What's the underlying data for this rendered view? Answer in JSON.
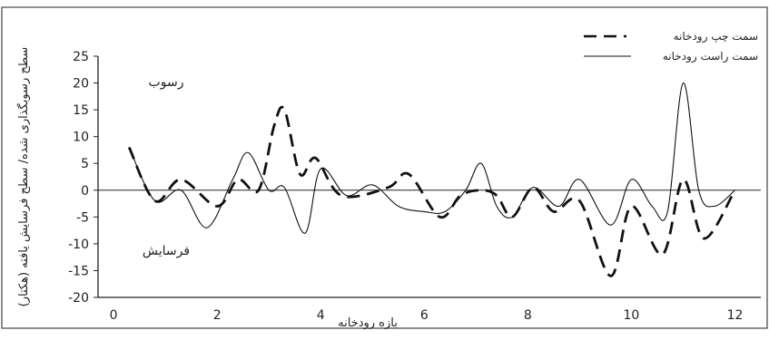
{
  "chart_data": {
    "type": "line",
    "title": "",
    "xlabel": "بازه رودخانه",
    "ylabel": "سطح رسوبگذاری شده/ سطح فرسایش یافته (هکتار)",
    "xlim": [
      -0.3,
      12.5
    ],
    "ylim": [
      -20,
      25
    ],
    "x_ticks": [
      0,
      2,
      4,
      6,
      8,
      10,
      12
    ],
    "y_ticks": [
      25,
      20,
      15,
      10,
      5,
      0,
      -5,
      -10,
      -15,
      -20
    ],
    "grid": false,
    "legend_position": "top-right",
    "annotations": [
      {
        "text": "رسوب"
      },
      {
        "text": "فرسایش"
      }
    ],
    "series": [
      {
        "name": "سمت چپ رودخانه",
        "style": "dashed",
        "x": [
          0.3,
          0.8,
          1.3,
          2.0,
          2.4,
          2.8,
          3.1,
          3.3,
          3.6,
          3.9,
          4.4,
          5.3,
          5.7,
          6.3,
          6.7,
          7.1,
          7.4,
          7.7,
          8.1,
          8.5,
          9.0,
          9.6,
          10.0,
          10.6,
          11.0,
          11.4,
          12.0
        ],
        "y": [
          8,
          -2,
          2,
          -3,
          2,
          0,
          12,
          15,
          3,
          6,
          -1,
          0.5,
          3,
          -5,
          -1,
          0,
          -1,
          -5,
          0.5,
          -4,
          -2,
          -16,
          -3,
          -12,
          2,
          -9,
          0
        ]
      },
      {
        "name": "سمت راست رودخانه",
        "style": "solid",
        "x": [
          0.3,
          0.8,
          1.3,
          1.8,
          2.3,
          2.6,
          3.0,
          3.3,
          3.7,
          4.0,
          4.5,
          5.0,
          5.5,
          6.0,
          6.4,
          6.8,
          7.1,
          7.4,
          7.7,
          8.1,
          8.6,
          9.0,
          9.6,
          10.0,
          10.4,
          10.7,
          11.0,
          11.3,
          11.6,
          12.0
        ],
        "y": [
          8,
          -2,
          0,
          -7,
          2,
          7,
          0,
          0.5,
          -8,
          4,
          -1,
          1,
          -3,
          -4,
          -4,
          0,
          5,
          -3,
          -5,
          0.5,
          -3,
          2,
          -6.5,
          2,
          -3,
          -4,
          20,
          0,
          -3,
          0
        ]
      }
    ]
  }
}
